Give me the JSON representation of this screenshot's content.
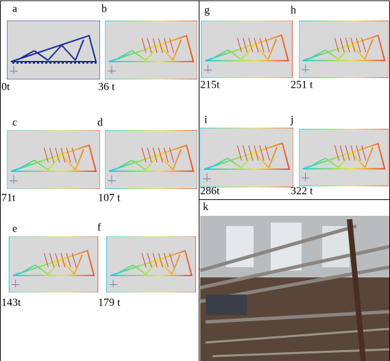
{
  "panels": [
    {
      "label": "a",
      "caption": "0t"
    },
    {
      "label": "b",
      "caption": "36 t"
    },
    {
      "label": "c",
      "caption": "71t"
    },
    {
      "label": "d",
      "caption": "107 t"
    },
    {
      "label": "e",
      "caption": "143t"
    },
    {
      "label": "f",
      "caption": "179 t"
    },
    {
      "label": "g",
      "caption": "215t"
    },
    {
      "label": "h",
      "caption": "251 t"
    },
    {
      "label": "i",
      "caption": "286t"
    },
    {
      "label": "j",
      "caption": "322 t"
    }
  ],
  "photo": {
    "label": "k"
  }
}
